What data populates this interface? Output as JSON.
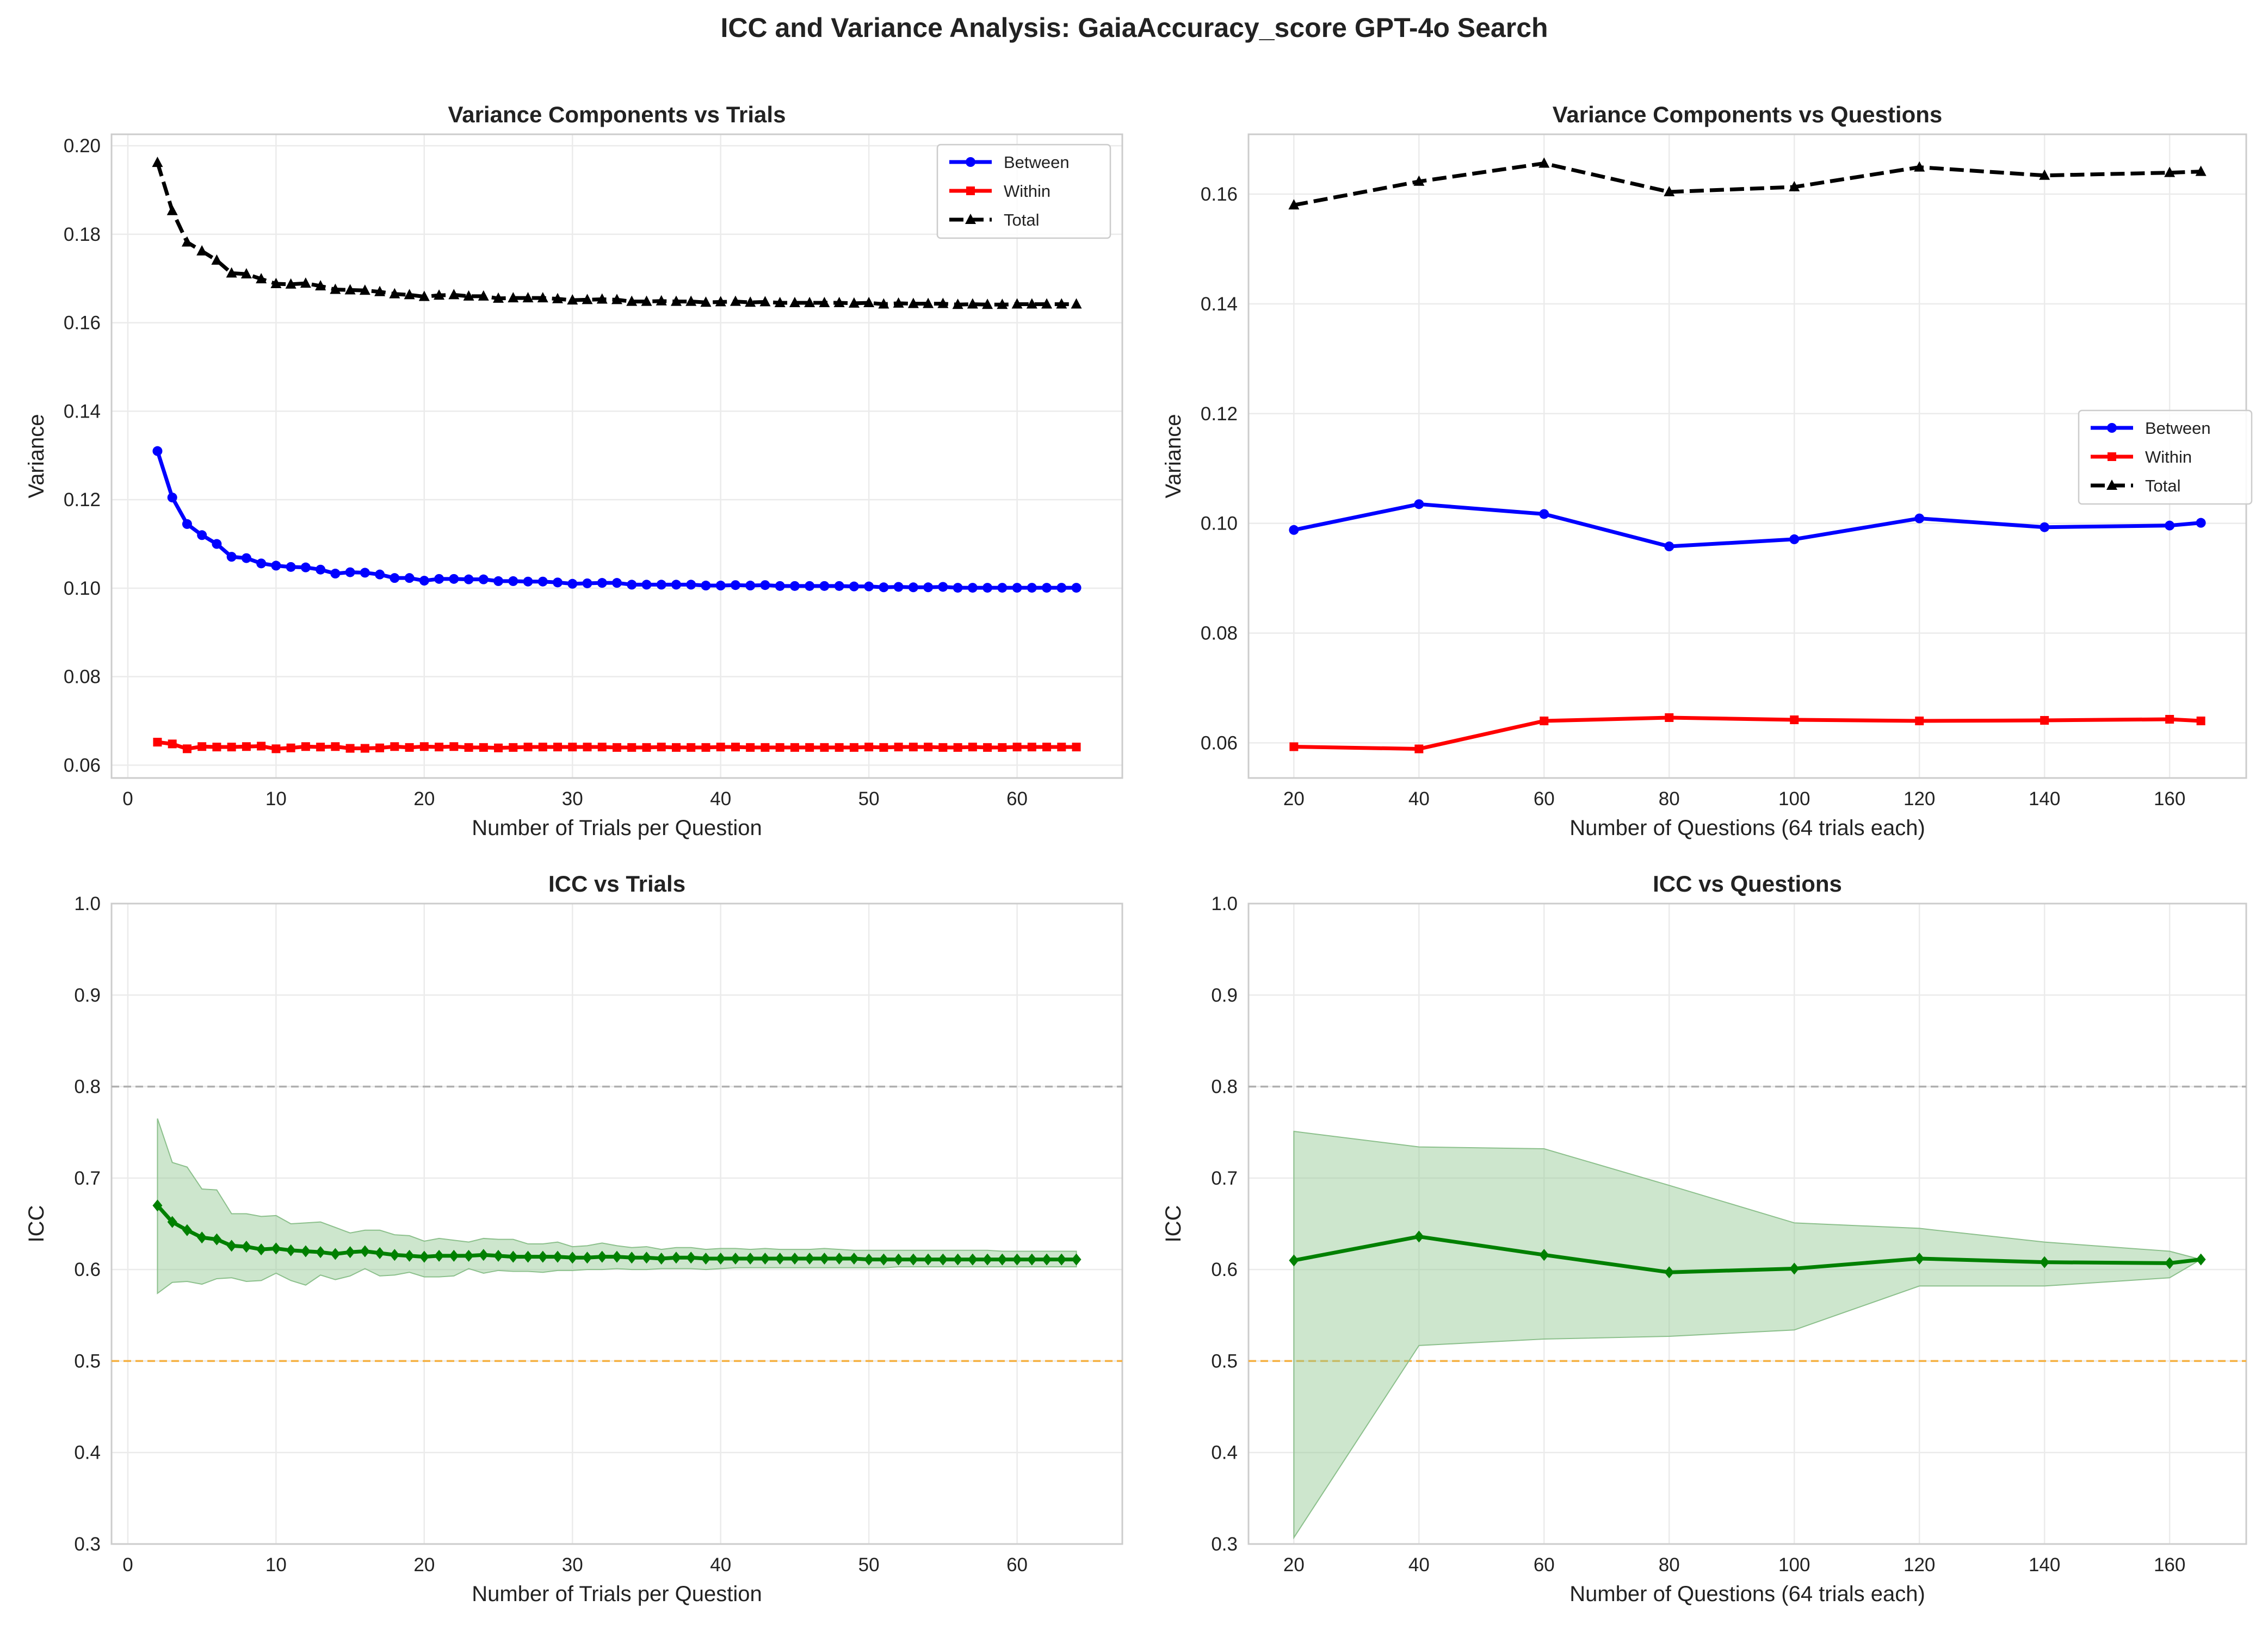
{
  "suptitle": "ICC and Variance Analysis: GaiaAccuracy_score GPT-4o Search",
  "colors": {
    "between": "#0000ff",
    "within": "#ff0000",
    "total": "#000000",
    "icc": "#008000",
    "ci_fill": "#90c890",
    "ref_high": "#b0b0b0",
    "ref_low": "#f5b041"
  },
  "chart_data": [
    {
      "id": "var_trials",
      "type": "line",
      "title": "Variance Components vs Trials",
      "xlabel": "Number of Trials per Question",
      "ylabel": "Variance",
      "xlim": [
        -1.1,
        67.1
      ],
      "ylim": [
        0.0571,
        0.2026
      ],
      "xticks": [
        0,
        10,
        20,
        30,
        40,
        50,
        60
      ],
      "yticks": [
        0.06,
        0.08,
        0.1,
        0.12,
        0.14,
        0.16,
        0.18,
        0.2
      ],
      "ytick_decimals": 2,
      "grid": true,
      "legend": "upper right",
      "x": [
        2,
        3,
        4,
        5,
        6,
        7,
        8,
        9,
        10,
        11,
        12,
        13,
        14,
        15,
        16,
        17,
        18,
        19,
        20,
        21,
        22,
        23,
        24,
        25,
        26,
        27,
        28,
        29,
        30,
        31,
        32,
        33,
        34,
        35,
        36,
        37,
        38,
        39,
        40,
        41,
        42,
        43,
        44,
        45,
        46,
        47,
        48,
        49,
        50,
        51,
        52,
        53,
        54,
        55,
        56,
        57,
        58,
        59,
        60,
        61,
        62,
        63,
        64
      ],
      "series": [
        {
          "name": "Between",
          "color": "#0000ff",
          "marker": "circle",
          "dash": false,
          "values": [
            0.131,
            0.1205,
            0.1145,
            0.112,
            0.11,
            0.1071,
            0.1068,
            0.1056,
            0.1051,
            0.1048,
            0.1047,
            0.1042,
            0.1033,
            0.1036,
            0.1035,
            0.1031,
            0.1023,
            0.1023,
            0.1017,
            0.1021,
            0.1021,
            0.102,
            0.102,
            0.1016,
            0.1016,
            0.1015,
            0.1015,
            0.1013,
            0.101,
            0.1011,
            0.1012,
            0.1012,
            0.1008,
            0.1008,
            0.1008,
            0.1008,
            0.1008,
            0.1006,
            0.1006,
            0.1007,
            0.1006,
            0.1007,
            0.1005,
            0.1005,
            0.1005,
            0.1005,
            0.1005,
            0.1004,
            0.1004,
            0.1002,
            0.1003,
            0.1002,
            0.1002,
            0.1003,
            0.1001,
            0.1001,
            0.1001,
            0.1001,
            0.1001,
            0.1001,
            0.1001,
            0.1001,
            0.1001
          ]
        },
        {
          "name": "Within",
          "color": "#ff0000",
          "marker": "square",
          "dash": false,
          "values": [
            0.0652,
            0.0648,
            0.0637,
            0.0642,
            0.0641,
            0.0641,
            0.0642,
            0.0643,
            0.0637,
            0.0639,
            0.0642,
            0.0641,
            0.0642,
            0.0638,
            0.0638,
            0.0639,
            0.0642,
            0.064,
            0.0642,
            0.0641,
            0.0642,
            0.064,
            0.064,
            0.0639,
            0.064,
            0.0641,
            0.0641,
            0.0641,
            0.0641,
            0.0641,
            0.0641,
            0.064,
            0.064,
            0.064,
            0.0641,
            0.064,
            0.064,
            0.064,
            0.0641,
            0.0641,
            0.064,
            0.064,
            0.064,
            0.064,
            0.064,
            0.064,
            0.064,
            0.064,
            0.0641,
            0.064,
            0.0641,
            0.0641,
            0.0641,
            0.064,
            0.064,
            0.0641,
            0.064,
            0.064,
            0.0641,
            0.0641,
            0.0641,
            0.0641,
            0.0641
          ]
        },
        {
          "name": "Total",
          "color": "#000000",
          "marker": "triangle",
          "dash": true,
          "values": [
            0.1962,
            0.1853,
            0.1782,
            0.1762,
            0.1741,
            0.1712,
            0.171,
            0.1699,
            0.1688,
            0.1687,
            0.1689,
            0.1683,
            0.1675,
            0.1674,
            0.1673,
            0.167,
            0.1665,
            0.1663,
            0.1659,
            0.1662,
            0.1663,
            0.166,
            0.166,
            0.1655,
            0.1656,
            0.1656,
            0.1656,
            0.1654,
            0.1651,
            0.1652,
            0.1653,
            0.1652,
            0.1648,
            0.1648,
            0.1649,
            0.1648,
            0.1648,
            0.1646,
            0.1647,
            0.1648,
            0.1646,
            0.1647,
            0.1645,
            0.1645,
            0.1645,
            0.1645,
            0.1645,
            0.1644,
            0.1645,
            0.1642,
            0.1644,
            0.1643,
            0.1643,
            0.1643,
            0.1641,
            0.1642,
            0.1641,
            0.1641,
            0.1642,
            0.1642,
            0.1642,
            0.1642,
            0.1642
          ]
        }
      ]
    },
    {
      "id": "var_questions",
      "type": "line",
      "title": "Variance Components vs Questions",
      "xlabel": "Number of Questions (64 trials each)",
      "ylabel": "Variance",
      "xlim": [
        12.75,
        172.25
      ],
      "ylim": [
        0.0536,
        0.1709
      ],
      "xticks": [
        20,
        40,
        60,
        80,
        100,
        120,
        140,
        160
      ],
      "yticks": [
        0.06,
        0.08,
        0.1,
        0.12,
        0.14,
        0.16
      ],
      "ytick_decimals": 2,
      "grid": true,
      "legend": "center right",
      "x": [
        20,
        40,
        60,
        80,
        100,
        120,
        140,
        160,
        165
      ],
      "series": [
        {
          "name": "Between",
          "color": "#0000ff",
          "marker": "circle",
          "dash": false,
          "values": [
            0.0988,
            0.1035,
            0.1017,
            0.0958,
            0.0971,
            0.1009,
            0.0993,
            0.0996,
            0.1001
          ]
        },
        {
          "name": "Within",
          "color": "#ff0000",
          "marker": "square",
          "dash": false,
          "values": [
            0.0593,
            0.0589,
            0.064,
            0.0646,
            0.0642,
            0.064,
            0.0641,
            0.0643,
            0.064
          ]
        },
        {
          "name": "Total",
          "color": "#000000",
          "marker": "triangle",
          "dash": true,
          "values": [
            0.158,
            0.1623,
            0.1656,
            0.1604,
            0.1613,
            0.1649,
            0.1634,
            0.1639,
            0.1641
          ]
        }
      ]
    },
    {
      "id": "icc_trials",
      "type": "line",
      "title": "ICC vs Trials",
      "xlabel": "Number of Trials per Question",
      "ylabel": "ICC",
      "xlim": [
        -1.1,
        67.1
      ],
      "ylim": [
        0.3,
        1.0
      ],
      "xticks": [
        0,
        10,
        20,
        30,
        40,
        50,
        60
      ],
      "yticks": [
        0.3,
        0.4,
        0.5,
        0.6,
        0.7,
        0.8,
        0.9,
        1.0
      ],
      "ytick_decimals": 1,
      "grid": true,
      "reference_lines": [
        {
          "y": 0.8,
          "color": "#b0b0b0"
        },
        {
          "y": 0.5,
          "color": "#f5b041"
        }
      ],
      "x": [
        2,
        3,
        4,
        5,
        6,
        7,
        8,
        9,
        10,
        11,
        12,
        13,
        14,
        15,
        16,
        17,
        18,
        19,
        20,
        21,
        22,
        23,
        24,
        25,
        26,
        27,
        28,
        29,
        30,
        31,
        32,
        33,
        34,
        35,
        36,
        37,
        38,
        39,
        40,
        41,
        42,
        43,
        44,
        45,
        46,
        47,
        48,
        49,
        50,
        51,
        52,
        53,
        54,
        55,
        56,
        57,
        58,
        59,
        60,
        61,
        62,
        63,
        64
      ],
      "icc": [
        0.67,
        0.652,
        0.643,
        0.635,
        0.633,
        0.626,
        0.625,
        0.622,
        0.623,
        0.621,
        0.62,
        0.619,
        0.617,
        0.619,
        0.62,
        0.618,
        0.616,
        0.615,
        0.614,
        0.615,
        0.615,
        0.615,
        0.616,
        0.615,
        0.614,
        0.614,
        0.614,
        0.614,
        0.613,
        0.613,
        0.614,
        0.614,
        0.613,
        0.613,
        0.612,
        0.613,
        0.613,
        0.612,
        0.612,
        0.612,
        0.612,
        0.612,
        0.612,
        0.612,
        0.612,
        0.612,
        0.612,
        0.612,
        0.611,
        0.611,
        0.611,
        0.611,
        0.611,
        0.611,
        0.611,
        0.611,
        0.611,
        0.611,
        0.611,
        0.611,
        0.611,
        0.611,
        0.611
      ],
      "ci_upper": [
        0.765,
        0.717,
        0.712,
        0.688,
        0.687,
        0.661,
        0.661,
        0.658,
        0.659,
        0.65,
        0.651,
        0.652,
        0.646,
        0.64,
        0.643,
        0.643,
        0.638,
        0.637,
        0.631,
        0.634,
        0.632,
        0.63,
        0.634,
        0.633,
        0.633,
        0.628,
        0.628,
        0.63,
        0.625,
        0.626,
        0.629,
        0.626,
        0.624,
        0.625,
        0.622,
        0.624,
        0.624,
        0.622,
        0.623,
        0.623,
        0.622,
        0.623,
        0.622,
        0.622,
        0.622,
        0.623,
        0.622,
        0.621,
        0.621,
        0.621,
        0.621,
        0.621,
        0.621,
        0.621,
        0.621,
        0.621,
        0.621,
        0.62,
        0.62,
        0.62,
        0.62,
        0.62,
        0.62
      ],
      "ci_lower": [
        0.574,
        0.586,
        0.587,
        0.584,
        0.59,
        0.591,
        0.587,
        0.588,
        0.596,
        0.588,
        0.583,
        0.594,
        0.589,
        0.593,
        0.601,
        0.593,
        0.594,
        0.597,
        0.592,
        0.592,
        0.593,
        0.601,
        0.596,
        0.599,
        0.598,
        0.598,
        0.597,
        0.599,
        0.599,
        0.6,
        0.6,
        0.601,
        0.6,
        0.6,
        0.601,
        0.601,
        0.601,
        0.6,
        0.601,
        0.602,
        0.602,
        0.602,
        0.602,
        0.602,
        0.602,
        0.602,
        0.602,
        0.602,
        0.602,
        0.602,
        0.603,
        0.603,
        0.603,
        0.603,
        0.603,
        0.603,
        0.603,
        0.603,
        0.603,
        0.603,
        0.603,
        0.603,
        0.603
      ]
    },
    {
      "id": "icc_questions",
      "type": "line",
      "title": "ICC vs Questions",
      "xlabel": "Number of Questions (64 trials each)",
      "ylabel": "ICC",
      "xlim": [
        12.75,
        172.25
      ],
      "ylim": [
        0.3,
        1.0
      ],
      "xticks": [
        20,
        40,
        60,
        80,
        100,
        120,
        140,
        160
      ],
      "yticks": [
        0.3,
        0.4,
        0.5,
        0.6,
        0.7,
        0.8,
        0.9,
        1.0
      ],
      "ytick_decimals": 1,
      "grid": true,
      "reference_lines": [
        {
          "y": 0.8,
          "color": "#b0b0b0"
        },
        {
          "y": 0.5,
          "color": "#f5b041"
        }
      ],
      "x": [
        20,
        40,
        60,
        80,
        100,
        120,
        140,
        160,
        165
      ],
      "icc": [
        0.61,
        0.636,
        0.616,
        0.597,
        0.601,
        0.612,
        0.608,
        0.607,
        0.611
      ],
      "ci_upper": [
        0.751,
        0.734,
        0.732,
        0.692,
        0.651,
        0.645,
        0.63,
        0.62,
        0.611
      ],
      "ci_lower": [
        0.307,
        0.517,
        0.524,
        0.527,
        0.534,
        0.582,
        0.582,
        0.591,
        0.611
      ]
    }
  ]
}
